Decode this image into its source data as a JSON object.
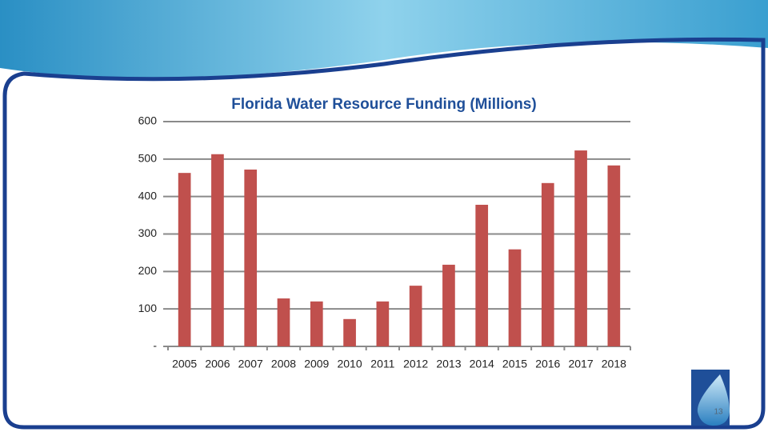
{
  "chart_data": {
    "type": "bar",
    "title": "Florida Water Resource Funding (Millions)",
    "categories": [
      "2005",
      "2006",
      "2007",
      "2008",
      "2009",
      "2010",
      "2011",
      "2012",
      "2013",
      "2014",
      "2015",
      "2016",
      "2017",
      "2018"
    ],
    "values": [
      463,
      513,
      472,
      128,
      120,
      73,
      120,
      162,
      218,
      378,
      259,
      436,
      523,
      483
    ],
    "color": "#c0504d",
    "ylim": [
      0,
      600
    ],
    "yticks": [
      {
        "value": 0,
        "label": "-"
      },
      100,
      200,
      300,
      400,
      500,
      600
    ],
    "grid": true
  },
  "slide_number": "13"
}
